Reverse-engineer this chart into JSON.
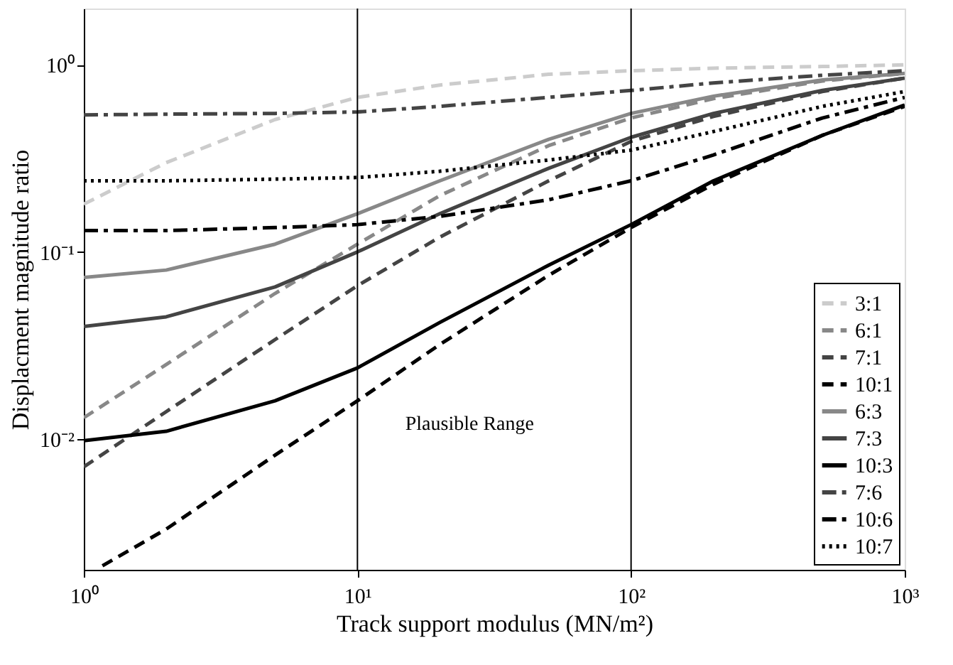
{
  "chart_data": {
    "type": "line",
    "xlabel": "Track support modulus (MN/m²)",
    "ylabel": "Displacment magnitude ratio",
    "x": [
      1,
      2,
      5,
      10,
      20,
      50,
      100,
      200,
      500,
      1000
    ],
    "series": [
      {
        "name": "3:1",
        "color": "#cccccc",
        "line_style": "dashed",
        "values": [
          0.18,
          0.3,
          0.51,
          0.67,
          0.78,
          0.89,
          0.93,
          0.96,
          0.98,
          1.0
        ]
      },
      {
        "name": "6:1",
        "color": "#888888",
        "line_style": "dashed",
        "values": [
          0.013,
          0.025,
          0.06,
          0.11,
          0.2,
          0.37,
          0.52,
          0.66,
          0.82,
          0.9
        ]
      },
      {
        "name": "7:1",
        "color": "#444444",
        "line_style": "dashed",
        "values": [
          0.0071,
          0.014,
          0.034,
          0.066,
          0.12,
          0.24,
          0.39,
          0.53,
          0.72,
          0.85
        ]
      },
      {
        "name": "10:1",
        "color": "#000000",
        "line_style": "dashed",
        "x": [
          1.17,
          2,
          5,
          10,
          20,
          50,
          100,
          200,
          500,
          1000
        ],
        "values": [
          0.0021,
          0.0033,
          0.0082,
          0.016,
          0.032,
          0.075,
          0.135,
          0.23,
          0.42,
          0.6
        ]
      },
      {
        "name": "6:3",
        "color": "#888888",
        "line_style": "solid",
        "values": [
          0.073,
          0.08,
          0.11,
          0.16,
          0.24,
          0.4,
          0.55,
          0.68,
          0.83,
          0.9
        ]
      },
      {
        "name": "7:3",
        "color": "#444444",
        "line_style": "solid",
        "values": [
          0.04,
          0.045,
          0.065,
          0.1,
          0.16,
          0.28,
          0.41,
          0.55,
          0.73,
          0.85
        ]
      },
      {
        "name": "10:3",
        "color": "#000000",
        "line_style": "solid",
        "values": [
          0.0098,
          0.011,
          0.016,
          0.024,
          0.042,
          0.085,
          0.14,
          0.24,
          0.42,
          0.61
        ]
      },
      {
        "name": "7:6",
        "color": "#444444",
        "line_style": "dashdot",
        "values": [
          0.54,
          0.545,
          0.55,
          0.56,
          0.6,
          0.67,
          0.73,
          0.8,
          0.88,
          0.93
        ]
      },
      {
        "name": "10:6",
        "color": "#000000",
        "line_style": "dashdot",
        "values": [
          0.13,
          0.13,
          0.135,
          0.14,
          0.155,
          0.19,
          0.24,
          0.33,
          0.52,
          0.67
        ]
      },
      {
        "name": "10:7",
        "color": "#000000",
        "line_style": "dotted",
        "values": [
          0.24,
          0.24,
          0.245,
          0.25,
          0.27,
          0.31,
          0.35,
          0.44,
          0.6,
          0.72
        ]
      }
    ],
    "log": "xy",
    "xlim": [
      1,
      1000
    ],
    "ylim": [
      0.002,
      2
    ],
    "xticks": [
      {
        "value": 1,
        "label": "10⁰"
      },
      {
        "value": 10,
        "label": "10¹"
      },
      {
        "value": 100,
        "label": "10²"
      },
      {
        "value": 1000,
        "label": "10³"
      }
    ],
    "yticks": [
      {
        "value": 0.01,
        "label": "10⁻²"
      },
      {
        "value": 0.1,
        "label": "10⁻¹"
      },
      {
        "value": 1,
        "label": "10⁰"
      }
    ],
    "ref_lines": [
      {
        "axis": "x",
        "value": 10,
        "color": "#000000"
      },
      {
        "axis": "x",
        "value": 100,
        "color": "#000000"
      }
    ],
    "annotations": [
      "Plausible Range"
    ],
    "grid": false,
    "legend": "bottom right"
  }
}
